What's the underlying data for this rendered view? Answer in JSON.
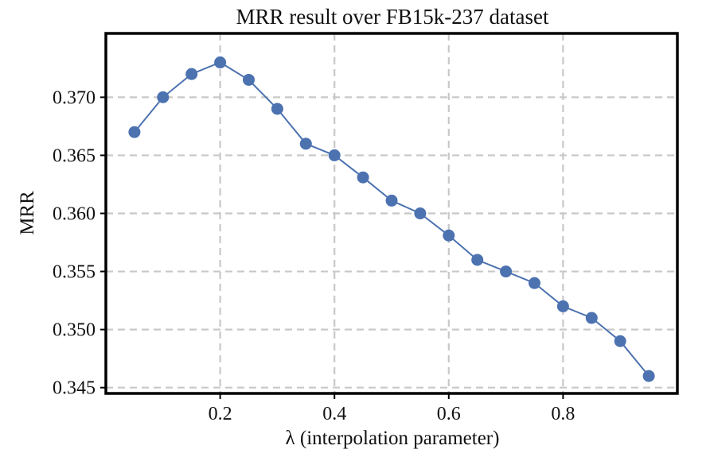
{
  "chart_data": {
    "type": "line",
    "title": "MRR result over FB15k-237 dataset",
    "xlabel": "λ (interpolation parameter)",
    "ylabel": "MRR",
    "xlim": [
      0.0,
      1.0
    ],
    "ylim": [
      0.3445,
      0.3755
    ],
    "xticks": [
      0.2,
      0.4,
      0.6,
      0.8
    ],
    "xtick_labels": [
      "0.2",
      "0.4",
      "0.6",
      "0.8"
    ],
    "yticks": [
      0.345,
      0.35,
      0.355,
      0.36,
      0.365,
      0.37
    ],
    "ytick_labels": [
      "0.345",
      "0.350",
      "0.355",
      "0.360",
      "0.365",
      "0.370"
    ],
    "grid": true,
    "series": [
      {
        "name": "MRR",
        "color": "#4c72b0",
        "x": [
          0.05,
          0.1,
          0.15,
          0.2,
          0.25,
          0.3,
          0.35,
          0.4,
          0.45,
          0.5,
          0.55,
          0.6,
          0.65,
          0.7,
          0.75,
          0.8,
          0.85,
          0.9,
          0.95
        ],
        "y": [
          0.367,
          0.37,
          0.372,
          0.373,
          0.3715,
          0.369,
          0.366,
          0.365,
          0.3631,
          0.3611,
          0.36,
          0.3581,
          0.356,
          0.355,
          0.354,
          0.352,
          0.351,
          0.349,
          0.346
        ]
      }
    ]
  }
}
